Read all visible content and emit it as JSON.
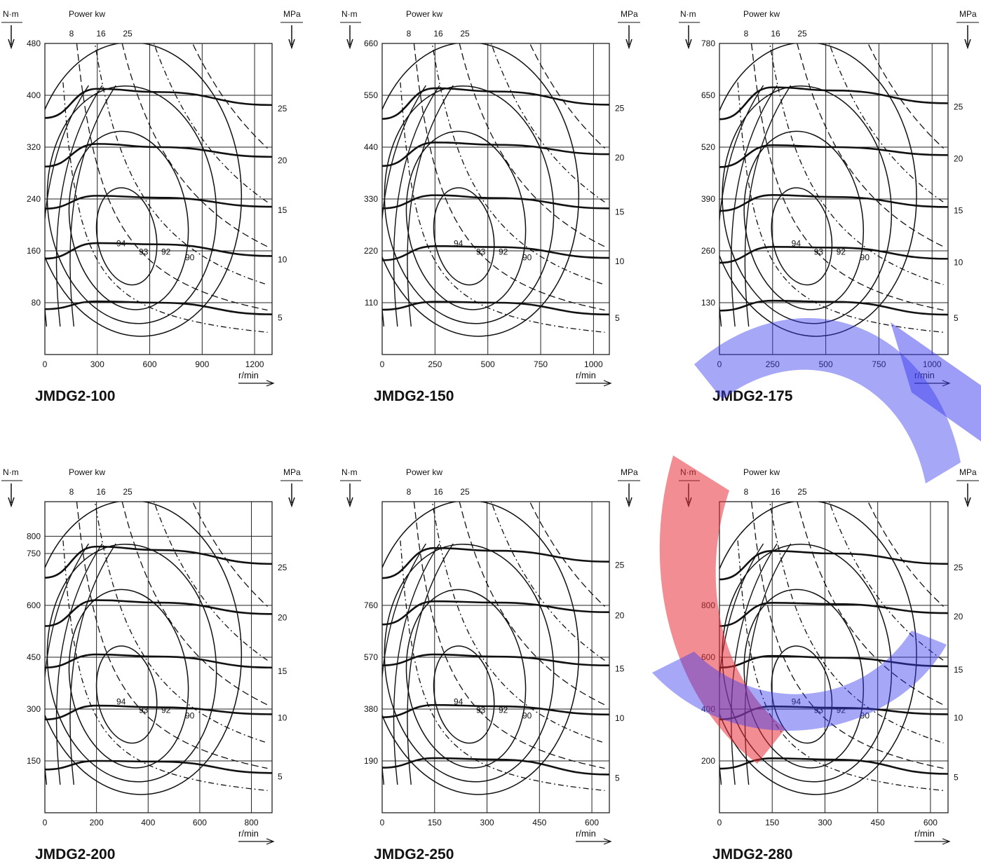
{
  "colors": {
    "ink": "#111111",
    "grid": "#222222",
    "wm_red": "#e8303a",
    "wm_blue": "#3c3cf0"
  },
  "labels": {
    "torque_unit": "N·m",
    "power_header": "Power kw",
    "pressure_unit": "MPa",
    "speed_unit": "r/min"
  },
  "chart_data": [
    {
      "type": "line",
      "title": "JMDG2-100",
      "xlabel": "r/min",
      "ylabel": "N·m",
      "y2label": "MPa",
      "xlim": [
        0,
        1300
      ],
      "ylim": [
        0,
        480
      ],
      "x_ticks": [
        0,
        300,
        600,
        900,
        1200
      ],
      "y_ticks": [
        80,
        160,
        240,
        320,
        400,
        480
      ],
      "power_labels": [
        "8",
        "16",
        "25"
      ],
      "pressure_labels": [
        "5",
        "10",
        "15",
        "20",
        "25"
      ],
      "efficiency_labels": [
        "94",
        "93",
        "92",
        "90"
      ],
      "series": [
        {
          "name": "5",
          "x": [
            0,
            300,
            650,
            1300
          ],
          "y": [
            70,
            82,
            80,
            62
          ]
        },
        {
          "name": "10",
          "x": [
            0,
            300,
            650,
            1300
          ],
          "y": [
            148,
            172,
            170,
            152
          ]
        },
        {
          "name": "15",
          "x": [
            0,
            300,
            650,
            1300
          ],
          "y": [
            225,
            245,
            242,
            228
          ]
        },
        {
          "name": "20",
          "x": [
            0,
            300,
            650,
            1300
          ],
          "y": [
            290,
            325,
            320,
            305
          ]
        },
        {
          "name": "25",
          "x": [
            0,
            300,
            650,
            1300
          ],
          "y": [
            365,
            410,
            405,
            385
          ]
        }
      ]
    },
    {
      "type": "line",
      "title": "JMDG2-150",
      "xlabel": "r/min",
      "ylabel": "N·m",
      "y2label": "MPa",
      "xlim": [
        0,
        1075
      ],
      "ylim": [
        0,
        660
      ],
      "x_ticks": [
        0,
        250,
        500,
        750,
        1000
      ],
      "y_ticks": [
        110,
        220,
        330,
        440,
        550,
        660
      ],
      "power_labels": [
        "8",
        "16",
        "25"
      ],
      "pressure_labels": [
        "5",
        "10",
        "15",
        "20",
        "25"
      ],
      "efficiency_labels": [
        "94",
        "93",
        "92",
        "90"
      ],
      "series": [
        {
          "name": "5",
          "x": [
            0,
            250,
            540,
            1075
          ],
          "y": [
            95,
            112,
            110,
            85
          ]
        },
        {
          "name": "10",
          "x": [
            0,
            250,
            540,
            1075
          ],
          "y": [
            200,
            230,
            228,
            205
          ]
        },
        {
          "name": "15",
          "x": [
            0,
            250,
            540,
            1075
          ],
          "y": [
            310,
            338,
            332,
            310
          ]
        },
        {
          "name": "20",
          "x": [
            0,
            250,
            540,
            1075
          ],
          "y": [
            400,
            450,
            445,
            425
          ]
        },
        {
          "name": "25",
          "x": [
            0,
            250,
            540,
            1075
          ],
          "y": [
            500,
            565,
            558,
            530
          ]
        }
      ]
    },
    {
      "type": "line",
      "title": "JMDG2-175",
      "xlabel": "r/min",
      "ylabel": "N·m",
      "y2label": "MPa",
      "xlim": [
        0,
        1075
      ],
      "ylim": [
        0,
        780
      ],
      "x_ticks": [
        0,
        250,
        500,
        750,
        1000
      ],
      "y_ticks": [
        130,
        260,
        390,
        520,
        650,
        780
      ],
      "power_labels": [
        "8",
        "16",
        "25"
      ],
      "pressure_labels": [
        "5",
        "10",
        "15",
        "20",
        "25"
      ],
      "efficiency_labels": [
        "94",
        "93",
        "92",
        "90"
      ],
      "series": [
        {
          "name": "5",
          "x": [
            0,
            250,
            540,
            1075
          ],
          "y": [
            110,
            135,
            132,
            100
          ]
        },
        {
          "name": "10",
          "x": [
            0,
            250,
            540,
            1075
          ],
          "y": [
            230,
            270,
            268,
            240
          ]
        },
        {
          "name": "15",
          "x": [
            0,
            250,
            540,
            1075
          ],
          "y": [
            360,
            400,
            395,
            370
          ]
        },
        {
          "name": "20",
          "x": [
            0,
            250,
            540,
            1075
          ],
          "y": [
            470,
            525,
            520,
            500
          ]
        },
        {
          "name": "25",
          "x": [
            0,
            250,
            540,
            1075
          ],
          "y": [
            590,
            670,
            662,
            630
          ]
        }
      ]
    },
    {
      "type": "line",
      "title": "JMDG2-200",
      "xlabel": "r/min",
      "ylabel": "N·m",
      "y2label": "MPa",
      "xlim": [
        0,
        880
      ],
      "ylim": [
        0,
        900
      ],
      "x_ticks": [
        0,
        200,
        400,
        600,
        800
      ],
      "y_ticks": [
        150,
        300,
        450,
        600,
        750,
        800
      ],
      "power_labels": [
        "8",
        "16",
        "25"
      ],
      "pressure_labels": [
        "5",
        "10",
        "15",
        "20",
        "25"
      ],
      "efficiency_labels": [
        "94",
        "93",
        "92",
        "90"
      ],
      "series": [
        {
          "name": "5",
          "x": [
            0,
            200,
            440,
            880
          ],
          "y": [
            125,
            150,
            148,
            115
          ]
        },
        {
          "name": "10",
          "x": [
            0,
            200,
            440,
            880
          ],
          "y": [
            270,
            310,
            305,
            285
          ]
        },
        {
          "name": "15",
          "x": [
            0,
            200,
            440,
            880
          ],
          "y": [
            420,
            458,
            452,
            420
          ]
        },
        {
          "name": "20",
          "x": [
            0,
            200,
            440,
            880
          ],
          "y": [
            540,
            615,
            608,
            575
          ]
        },
        {
          "name": "25",
          "x": [
            0,
            200,
            440,
            880
          ],
          "y": [
            680,
            770,
            760,
            720
          ]
        }
      ]
    },
    {
      "type": "line",
      "title": "JMDG2-250",
      "xlabel": "r/min",
      "ylabel": "N·m",
      "y2label": "MPa",
      "xlim": [
        0,
        650
      ],
      "ylim": [
        0,
        1140
      ],
      "x_ticks": [
        0,
        150,
        300,
        450,
        600
      ],
      "y_ticks": [
        190,
        380,
        570,
        760
      ],
      "power_labels": [
        "8",
        "16",
        "25"
      ],
      "pressure_labels": [
        "5",
        "10",
        "15",
        "20",
        "25"
      ],
      "efficiency_labels": [
        "94",
        "93",
        "92",
        "90"
      ],
      "series": [
        {
          "name": "5",
          "x": [
            0,
            150,
            330,
            650
          ],
          "y": [
            165,
            200,
            195,
            140
          ]
        },
        {
          "name": "10",
          "x": [
            0,
            150,
            330,
            650
          ],
          "y": [
            350,
            395,
            390,
            360
          ]
        },
        {
          "name": "15",
          "x": [
            0,
            150,
            330,
            650
          ],
          "y": [
            540,
            580,
            572,
            540
          ]
        },
        {
          "name": "20",
          "x": [
            0,
            150,
            330,
            650
          ],
          "y": [
            690,
            775,
            770,
            735
          ]
        },
        {
          "name": "25",
          "x": [
            0,
            150,
            330,
            650
          ],
          "y": [
            860,
            970,
            960,
            920
          ]
        }
      ]
    },
    {
      "type": "line",
      "title": "JMDG2-280",
      "xlabel": "r/min",
      "ylabel": "N·m",
      "y2label": "MPa",
      "xlim": [
        0,
        650
      ],
      "ylim": [
        0,
        1200
      ],
      "x_ticks": [
        0,
        150,
        300,
        450,
        600
      ],
      "y_ticks": [
        200,
        400,
        600,
        800
      ],
      "power_labels": [
        "8",
        "16",
        "25"
      ],
      "pressure_labels": [
        "5",
        "10",
        "15",
        "20",
        "25"
      ],
      "efficiency_labels": [
        "94",
        "93",
        "92",
        "90"
      ],
      "series": [
        {
          "name": "5",
          "x": [
            0,
            150,
            330,
            650
          ],
          "y": [
            170,
            210,
            205,
            150
          ]
        },
        {
          "name": "10",
          "x": [
            0,
            150,
            330,
            650
          ],
          "y": [
            360,
            410,
            405,
            380
          ]
        },
        {
          "name": "15",
          "x": [
            0,
            150,
            330,
            650
          ],
          "y": [
            560,
            605,
            598,
            565
          ]
        },
        {
          "name": "20",
          "x": [
            0,
            150,
            330,
            650
          ],
          "y": [
            720,
            810,
            805,
            770
          ]
        },
        {
          "name": "25",
          "x": [
            0,
            150,
            330,
            650
          ],
          "y": [
            900,
            1010,
            1000,
            960
          ]
        }
      ]
    }
  ]
}
